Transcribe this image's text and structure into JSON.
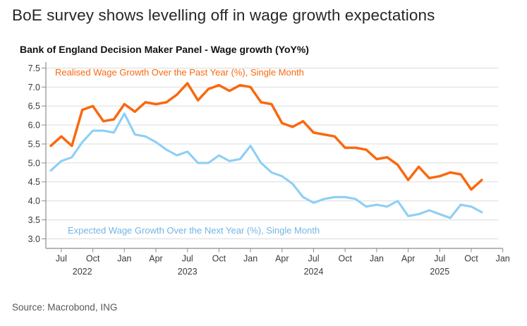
{
  "page": {
    "title": "BoE survey shows levelling off in wage growth expectations",
    "source": "Source: Macrobond, ING"
  },
  "colors": {
    "grid": "#dcdcdc",
    "axis": "#8c8c8c",
    "tick_text": "#3a3a3a",
    "realised_orange": "#F8690F",
    "expected_blue": "#8DCFF4",
    "expected_label_blue": "#74B5E5"
  },
  "chart_data": {
    "type": "line",
    "title": "Bank of England Decision Maker Panel - Wage growth (YoY%)",
    "frequency": "monthly",
    "start": "Jun 2022",
    "end": "Nov 2025",
    "ylim": [
      3.0,
      7.5
    ],
    "y_ticks": [
      3.0,
      3.5,
      4.0,
      4.5,
      5.0,
      5.5,
      6.0,
      6.5,
      7.0,
      7.5
    ],
    "grid": true,
    "x_tick_labels": [
      "Jul",
      "Oct",
      "Jan",
      "Apr",
      "Jul",
      "Oct",
      "Jan",
      "Apr",
      "Jul",
      "Oct",
      "Jan",
      "Apr",
      "Jul",
      "Oct",
      "Jan"
    ],
    "x_year_labels": [
      "2022",
      "2023",
      "2024",
      "2025"
    ],
    "legend_position": "inline-annotations",
    "series": [
      {
        "name": "Realised Wage Growth Over the Past Year (%), Single Month",
        "color": "#F8690F",
        "label_color": "#F8690F",
        "values": [
          5.45,
          5.7,
          5.45,
          6.4,
          6.5,
          6.1,
          6.15,
          6.55,
          6.35,
          6.6,
          6.55,
          6.6,
          6.8,
          7.1,
          6.65,
          6.95,
          7.05,
          6.9,
          7.05,
          7.0,
          6.6,
          6.55,
          6.05,
          5.95,
          6.1,
          5.8,
          5.75,
          5.7,
          5.4,
          5.4,
          5.35,
          5.1,
          5.15,
          4.95,
          4.55,
          4.9,
          4.6,
          4.65,
          4.75,
          4.7,
          4.3,
          4.55
        ]
      },
      {
        "name": "Expected Wage Growth Over the Next Year (%), Single Month",
        "color": "#8DCFF4",
        "label_color": "#74B5E5",
        "values": [
          4.8,
          5.05,
          5.15,
          5.55,
          5.85,
          5.85,
          5.8,
          6.3,
          5.75,
          5.7,
          5.55,
          5.35,
          5.2,
          5.3,
          5.0,
          5.0,
          5.2,
          5.05,
          5.1,
          5.45,
          5.0,
          4.75,
          4.65,
          4.45,
          4.1,
          3.95,
          4.05,
          4.1,
          4.1,
          4.05,
          3.85,
          3.9,
          3.85,
          4.0,
          3.6,
          3.65,
          3.75,
          3.65,
          3.55,
          3.9,
          3.85,
          3.7
        ]
      }
    ]
  }
}
